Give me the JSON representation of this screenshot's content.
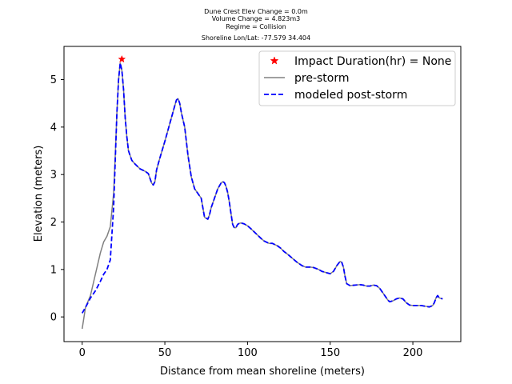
{
  "title_lines": [
    "Dune Crest Elev Change = 0.0m",
    "Volume Change = 4.823m3",
    "Regime = Collision",
    "Shoreline Lon/Lat: -77.579 34.404"
  ],
  "chart_data": {
    "type": "line",
    "xlabel": "Distance from mean shoreline (meters)",
    "ylabel": "Elevation (meters)",
    "xlim": [
      -11,
      229
    ],
    "ylim": [
      -0.52,
      5.7
    ],
    "xticks": [
      0,
      50,
      100,
      150,
      200
    ],
    "yticks": [
      0,
      1,
      2,
      3,
      4,
      5
    ],
    "legend_position": "top-right",
    "grid": false,
    "legend": [
      "Impact Duration(hr) = None",
      "pre-storm",
      "modeled post-storm"
    ],
    "series": [
      {
        "name": "pre-storm",
        "color": "#808080",
        "style": "solid",
        "x": [
          0,
          2,
          5,
          8,
          11,
          13,
          15,
          17,
          19,
          20,
          21,
          22,
          23,
          24,
          25,
          26,
          27,
          28,
          30,
          32,
          35,
          38,
          40,
          41,
          42,
          43,
          44,
          45,
          47,
          50,
          52,
          54,
          56,
          57,
          58,
          59,
          60,
          62,
          64,
          66,
          68,
          70,
          72,
          74,
          76,
          77,
          78,
          80,
          82,
          84,
          85,
          86,
          87,
          88,
          89,
          90,
          91,
          92,
          93,
          94,
          95,
          96,
          97,
          98,
          100,
          102,
          105,
          108,
          110,
          113,
          115,
          118,
          120,
          122,
          125,
          128,
          130,
          133,
          135,
          138,
          140,
          143,
          145,
          148,
          150,
          152,
          154,
          156,
          157,
          158,
          159,
          160,
          162,
          165,
          168,
          170,
          172,
          174,
          176,
          178,
          180,
          182,
          184,
          185,
          186,
          188,
          190,
          192,
          194,
          196,
          198,
          200,
          205,
          210,
          212,
          213,
          214,
          215,
          216,
          218
        ],
        "y": [
          -0.25,
          0.2,
          0.45,
          0.9,
          1.35,
          1.58,
          1.7,
          1.9,
          2.6,
          3.4,
          4.3,
          5.0,
          5.35,
          5.2,
          4.8,
          4.2,
          3.8,
          3.5,
          3.3,
          3.22,
          3.12,
          3.07,
          3.02,
          2.92,
          2.82,
          2.78,
          2.85,
          3.1,
          3.35,
          3.7,
          3.95,
          4.2,
          4.45,
          4.57,
          4.6,
          4.5,
          4.3,
          4.0,
          3.4,
          2.95,
          2.7,
          2.6,
          2.5,
          2.1,
          2.06,
          2.15,
          2.3,
          2.5,
          2.7,
          2.82,
          2.85,
          2.83,
          2.75,
          2.62,
          2.42,
          2.18,
          1.95,
          1.88,
          1.88,
          1.95,
          1.97,
          1.98,
          1.97,
          1.96,
          1.92,
          1.86,
          1.76,
          1.66,
          1.6,
          1.55,
          1.55,
          1.5,
          1.45,
          1.38,
          1.3,
          1.21,
          1.15,
          1.08,
          1.05,
          1.05,
          1.04,
          1.0,
          0.96,
          0.93,
          0.91,
          0.96,
          1.08,
          1.17,
          1.15,
          1.05,
          0.85,
          0.7,
          0.66,
          0.67,
          0.68,
          0.67,
          0.65,
          0.65,
          0.67,
          0.66,
          0.6,
          0.5,
          0.4,
          0.35,
          0.32,
          0.34,
          0.38,
          0.4,
          0.38,
          0.3,
          0.25,
          0.24,
          0.24,
          0.21,
          0.24,
          0.3,
          0.4,
          0.45,
          0.4,
          0.38
        ]
      },
      {
        "name": "modeled post-storm",
        "color": "#0000ff",
        "style": "dashed",
        "x": [
          0,
          2,
          5,
          8,
          11,
          13,
          15,
          17,
          19,
          20,
          21,
          22,
          23,
          24,
          25,
          26,
          27,
          28,
          30,
          32,
          35,
          38,
          40,
          41,
          42,
          43,
          44,
          45,
          47,
          50,
          52,
          54,
          56,
          57,
          58,
          59,
          60,
          62,
          64,
          66,
          68,
          70,
          72,
          74,
          76,
          77,
          78,
          80,
          82,
          84,
          85,
          86,
          87,
          88,
          89,
          90,
          91,
          92,
          93,
          94,
          95,
          96,
          97,
          98,
          100,
          102,
          105,
          108,
          110,
          113,
          115,
          118,
          120,
          122,
          125,
          128,
          130,
          133,
          135,
          138,
          140,
          143,
          145,
          148,
          150,
          152,
          154,
          156,
          157,
          158,
          159,
          160,
          162,
          165,
          168,
          170,
          172,
          174,
          176,
          178,
          180,
          182,
          184,
          185,
          186,
          188,
          190,
          192,
          194,
          196,
          198,
          200,
          205,
          210,
          212,
          213,
          214,
          215,
          216,
          218
        ],
        "y": [
          0.08,
          0.2,
          0.4,
          0.55,
          0.75,
          0.9,
          1.0,
          1.2,
          2.3,
          3.3,
          4.3,
          5.0,
          5.35,
          5.2,
          4.8,
          4.2,
          3.8,
          3.5,
          3.3,
          3.22,
          3.12,
          3.07,
          3.02,
          2.92,
          2.82,
          2.78,
          2.85,
          3.1,
          3.35,
          3.7,
          3.95,
          4.2,
          4.45,
          4.57,
          4.6,
          4.5,
          4.3,
          4.0,
          3.4,
          2.95,
          2.7,
          2.6,
          2.5,
          2.1,
          2.06,
          2.15,
          2.3,
          2.5,
          2.7,
          2.82,
          2.85,
          2.83,
          2.75,
          2.62,
          2.42,
          2.18,
          1.95,
          1.88,
          1.88,
          1.95,
          1.97,
          1.98,
          1.97,
          1.96,
          1.92,
          1.86,
          1.76,
          1.66,
          1.6,
          1.55,
          1.55,
          1.5,
          1.45,
          1.38,
          1.3,
          1.21,
          1.15,
          1.08,
          1.05,
          1.05,
          1.04,
          1.0,
          0.96,
          0.93,
          0.91,
          0.96,
          1.08,
          1.17,
          1.15,
          1.05,
          0.85,
          0.7,
          0.66,
          0.67,
          0.68,
          0.67,
          0.65,
          0.65,
          0.67,
          0.66,
          0.6,
          0.5,
          0.4,
          0.35,
          0.32,
          0.34,
          0.38,
          0.4,
          0.38,
          0.3,
          0.25,
          0.24,
          0.24,
          0.21,
          0.24,
          0.3,
          0.4,
          0.45,
          0.4,
          0.38
        ]
      }
    ],
    "markers": [
      {
        "name": "Impact Duration(hr) = None",
        "symbol": "star",
        "color": "#ff0000",
        "x": 24,
        "y": 5.43
      }
    ]
  }
}
